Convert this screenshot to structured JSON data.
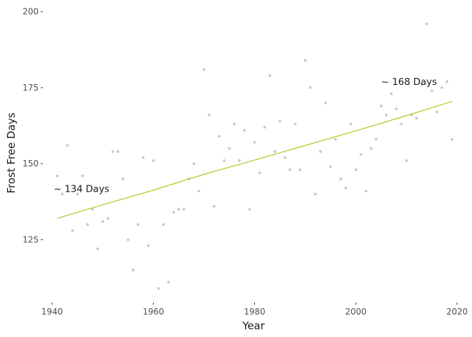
{
  "chart_data": {
    "type": "scatter",
    "title": "",
    "xlabel": "Year",
    "ylabel": "Frost Free Days",
    "xlim": [
      1939,
      2021
    ],
    "ylim": [
      105,
      202
    ],
    "x_ticks": [
      1940,
      1960,
      1980,
      2000,
      2020
    ],
    "y_ticks": [
      125,
      150,
      175,
      200
    ],
    "grid": false,
    "colors": {
      "points": "#c8c8c8",
      "trend": "#a8c40a"
    },
    "points": [
      {
        "x": 1941,
        "y": 146
      },
      {
        "x": 1942,
        "y": 140
      },
      {
        "x": 1943,
        "y": 156
      },
      {
        "x": 1944,
        "y": 128
      },
      {
        "x": 1945,
        "y": 140
      },
      {
        "x": 1946,
        "y": 146
      },
      {
        "x": 1947,
        "y": 130
      },
      {
        "x": 1948,
        "y": 135
      },
      {
        "x": 1949,
        "y": 122
      },
      {
        "x": 1950,
        "y": 131
      },
      {
        "x": 1951,
        "y": 132
      },
      {
        "x": 1952,
        "y": 154
      },
      {
        "x": 1953,
        "y": 154
      },
      {
        "x": 1954,
        "y": 145
      },
      {
        "x": 1955,
        "y": 125
      },
      {
        "x": 1956,
        "y": 115
      },
      {
        "x": 1957,
        "y": 130
      },
      {
        "x": 1958,
        "y": 152
      },
      {
        "x": 1959,
        "y": 123
      },
      {
        "x": 1960,
        "y": 151
      },
      {
        "x": 1961,
        "y": 109
      },
      {
        "x": 1962,
        "y": 130
      },
      {
        "x": 1963,
        "y": 111
      },
      {
        "x": 1964,
        "y": 134
      },
      {
        "x": 1965,
        "y": 135
      },
      {
        "x": 1966,
        "y": 135
      },
      {
        "x": 1967,
        "y": 145
      },
      {
        "x": 1968,
        "y": 150
      },
      {
        "x": 1969,
        "y": 141
      },
      {
        "x": 1970,
        "y": 181
      },
      {
        "x": 1971,
        "y": 166
      },
      {
        "x": 1972,
        "y": 136
      },
      {
        "x": 1973,
        "y": 159
      },
      {
        "x": 1974,
        "y": 151
      },
      {
        "x": 1975,
        "y": 155
      },
      {
        "x": 1976,
        "y": 163
      },
      {
        "x": 1977,
        "y": 151
      },
      {
        "x": 1978,
        "y": 161
      },
      {
        "x": 1979,
        "y": 135
      },
      {
        "x": 1980,
        "y": 157
      },
      {
        "x": 1981,
        "y": 147
      },
      {
        "x": 1982,
        "y": 162
      },
      {
        "x": 1983,
        "y": 179
      },
      {
        "x": 1984,
        "y": 154
      },
      {
        "x": 1985,
        "y": 164
      },
      {
        "x": 1986,
        "y": 152
      },
      {
        "x": 1987,
        "y": 148
      },
      {
        "x": 1988,
        "y": 163
      },
      {
        "x": 1989,
        "y": 148
      },
      {
        "x": 1990,
        "y": 184
      },
      {
        "x": 1991,
        "y": 175
      },
      {
        "x": 1992,
        "y": 140
      },
      {
        "x": 1993,
        "y": 154
      },
      {
        "x": 1994,
        "y": 170
      },
      {
        "x": 1995,
        "y": 149
      },
      {
        "x": 1996,
        "y": 158
      },
      {
        "x": 1997,
        "y": 145
      },
      {
        "x": 1998,
        "y": 142
      },
      {
        "x": 1999,
        "y": 163
      },
      {
        "x": 2000,
        "y": 148
      },
      {
        "x": 2001,
        "y": 153
      },
      {
        "x": 2002,
        "y": 141
      },
      {
        "x": 2003,
        "y": 155
      },
      {
        "x": 2004,
        "y": 158
      },
      {
        "x": 2005,
        "y": 169
      },
      {
        "x": 2006,
        "y": 166
      },
      {
        "x": 2007,
        "y": 173
      },
      {
        "x": 2008,
        "y": 168
      },
      {
        "x": 2009,
        "y": 163
      },
      {
        "x": 2010,
        "y": 151
      },
      {
        "x": 2011,
        "y": 166
      },
      {
        "x": 2012,
        "y": 165
      },
      {
        "x": 2013,
        "y": 176
      },
      {
        "x": 2014,
        "y": 196
      },
      {
        "x": 2015,
        "y": 174
      },
      {
        "x": 2016,
        "y": 167
      },
      {
        "x": 2017,
        "y": 175
      },
      {
        "x": 2018,
        "y": 177
      },
      {
        "x": 2019,
        "y": 158
      }
    ],
    "trend_line": [
      {
        "x": 1941,
        "y": 132
      },
      {
        "x": 1950,
        "y": 136.5
      },
      {
        "x": 1960,
        "y": 141.3
      },
      {
        "x": 1970,
        "y": 146.5
      },
      {
        "x": 1980,
        "y": 151.2
      },
      {
        "x": 1990,
        "y": 156
      },
      {
        "x": 2000,
        "y": 160.8
      },
      {
        "x": 2010,
        "y": 165.8
      },
      {
        "x": 2019,
        "y": 170.5
      }
    ],
    "annotations": [
      {
        "text": "~ 134 Days",
        "x": 1940.3,
        "y": 141.8
      },
      {
        "text": "~ 168 Days",
        "x": 2005,
        "y": 177
      }
    ]
  }
}
